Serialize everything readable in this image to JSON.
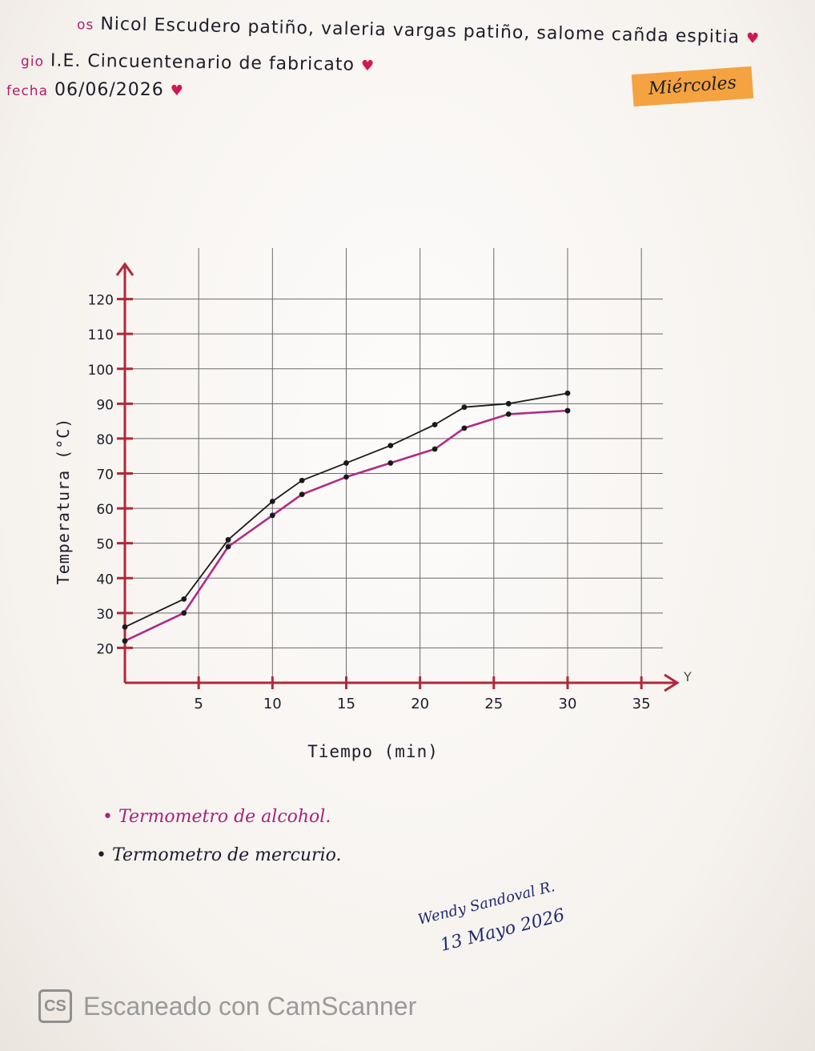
{
  "header": {
    "names_label": "os",
    "names": "Nicol Escudero patiño, valeria vargas patiño, salome cañda espitia",
    "school_label": "gio",
    "school": "I.E. Cincuentenario de fabricato",
    "date_label": "fecha",
    "date": "06/06/2026",
    "day": "Miércoles"
  },
  "chart_data": {
    "type": "line",
    "xlabel": "Tiempo (min)",
    "ylabel": "Temperatura (°C)",
    "x_axis_end_label": "Y",
    "xlim": [
      0,
      37
    ],
    "ylim": [
      10,
      130
    ],
    "x_ticks": [
      5,
      10,
      15,
      20,
      25,
      30,
      35
    ],
    "y_ticks": [
      20,
      30,
      40,
      50,
      60,
      70,
      80,
      90,
      100,
      110,
      120
    ],
    "grid": true,
    "series": [
      {
        "name": "Termometro de alcohol.",
        "color": "#b02a86",
        "x": [
          0,
          4,
          7,
          10,
          12,
          15,
          18,
          21,
          23,
          26,
          30
        ],
        "y": [
          22,
          30,
          49,
          58,
          64,
          69,
          73,
          77,
          83,
          87,
          88
        ]
      },
      {
        "name": "Termometro de mercurio.",
        "color": "#1a1a1a",
        "x": [
          0,
          4,
          7,
          10,
          12,
          15,
          18,
          21,
          23,
          26,
          30
        ],
        "y": [
          26,
          34,
          51,
          62,
          68,
          73,
          78,
          84,
          89,
          90,
          93
        ]
      }
    ]
  },
  "legend": {
    "alcohol": "Termometro de alcohol.",
    "mercury": "Termometro de mercurio."
  },
  "signature": {
    "name": "Wendy Sandoval R.",
    "date": "13 Mayo 2026"
  },
  "watermark": {
    "logo": "CS",
    "text": "Escaneado con CamScanner"
  }
}
